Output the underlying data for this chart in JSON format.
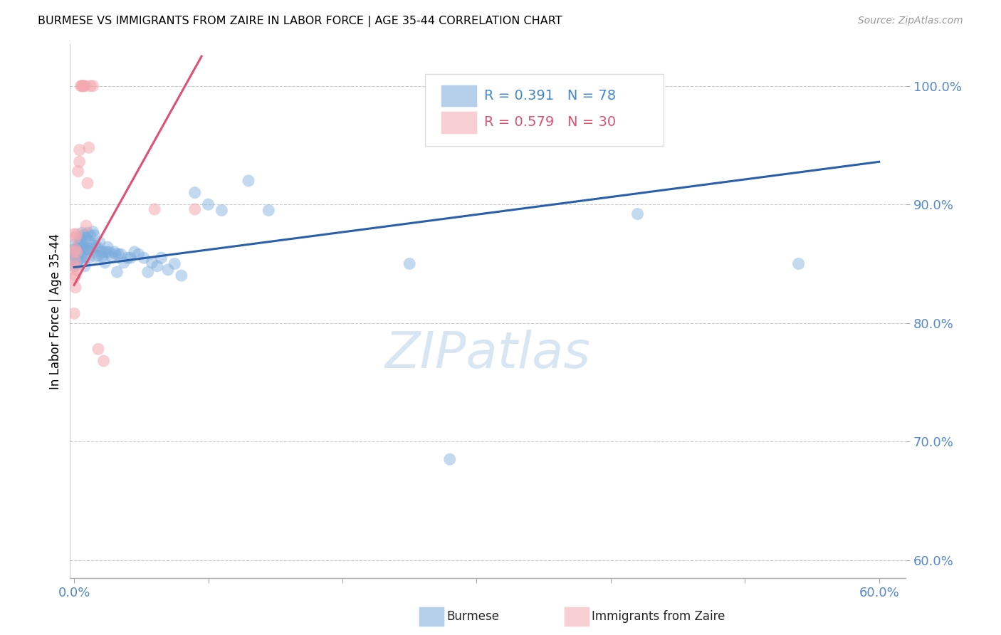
{
  "title": "BURMESE VS IMMIGRANTS FROM ZAIRE IN LABOR FORCE | AGE 35-44 CORRELATION CHART",
  "source": "Source: ZipAtlas.com",
  "ylabel": "In Labor Force | Age 35-44",
  "y_ticks": [
    0.6,
    0.7,
    0.8,
    0.9,
    1.0
  ],
  "y_tick_labels": [
    "60.0%",
    "70.0%",
    "80.0%",
    "90.0%",
    "100.0%"
  ],
  "x_min": -0.003,
  "x_max": 0.62,
  "y_min": 0.585,
  "y_max": 1.035,
  "blue_R": 0.391,
  "blue_N": 78,
  "pink_R": 0.579,
  "pink_N": 30,
  "blue_color": "#7aabdc",
  "pink_color": "#f4a8b0",
  "blue_line_color": "#2a5fac",
  "pink_line_color": "#e05070",
  "legend_label_blue": "Burmese",
  "legend_label_pink": "Immigrants from Zaire",
  "watermark": "ZIPatlas",
  "blue_x": [
    0.0,
    0.0,
    0.0,
    0.0,
    0.0,
    0.001,
    0.001,
    0.002,
    0.002,
    0.003,
    0.003,
    0.003,
    0.004,
    0.004,
    0.004,
    0.005,
    0.005,
    0.005,
    0.006,
    0.006,
    0.006,
    0.007,
    0.007,
    0.008,
    0.008,
    0.008,
    0.009,
    0.009,
    0.01,
    0.01,
    0.011,
    0.011,
    0.012,
    0.012,
    0.013,
    0.014,
    0.014,
    0.015,
    0.016,
    0.016,
    0.017,
    0.018,
    0.019,
    0.02,
    0.021,
    0.022,
    0.023,
    0.024,
    0.025,
    0.026,
    0.028,
    0.03,
    0.031,
    0.032,
    0.033,
    0.035,
    0.037,
    0.04,
    0.042,
    0.045,
    0.048,
    0.052,
    0.055,
    0.058,
    0.062,
    0.065,
    0.07,
    0.075,
    0.08,
    0.09,
    0.1,
    0.11,
    0.13,
    0.145,
    0.25,
    0.42,
    0.28,
    0.54
  ],
  "blue_y": [
    0.853,
    0.857,
    0.862,
    0.866,
    0.848,
    0.854,
    0.859,
    0.863,
    0.849,
    0.853,
    0.857,
    0.861,
    0.872,
    0.866,
    0.86,
    0.87,
    0.863,
    0.855,
    0.876,
    0.866,
    0.858,
    0.874,
    0.864,
    0.862,
    0.855,
    0.848,
    0.872,
    0.862,
    0.876,
    0.863,
    0.869,
    0.855,
    0.874,
    0.863,
    0.867,
    0.877,
    0.86,
    0.874,
    0.865,
    0.856,
    0.864,
    0.857,
    0.868,
    0.86,
    0.856,
    0.86,
    0.851,
    0.86,
    0.864,
    0.86,
    0.856,
    0.86,
    0.858,
    0.843,
    0.858,
    0.858,
    0.851,
    0.855,
    0.855,
    0.86,
    0.858,
    0.855,
    0.843,
    0.851,
    0.848,
    0.855,
    0.845,
    0.85,
    0.84,
    0.91,
    0.9,
    0.895,
    0.92,
    0.895,
    0.85,
    0.892,
    0.685,
    0.85
  ],
  "pink_x": [
    0.0,
    0.0,
    0.0,
    0.0,
    0.0,
    0.001,
    0.001,
    0.001,
    0.001,
    0.001,
    0.002,
    0.002,
    0.002,
    0.003,
    0.004,
    0.004,
    0.005,
    0.006,
    0.006,
    0.007,
    0.008,
    0.009,
    0.01,
    0.011,
    0.012,
    0.014,
    0.018,
    0.022,
    0.06,
    0.09
  ],
  "pink_y": [
    0.875,
    0.86,
    0.848,
    0.838,
    0.808,
    0.872,
    0.862,
    0.852,
    0.84,
    0.83,
    0.875,
    0.86,
    0.845,
    0.928,
    0.946,
    0.936,
    1.0,
    1.0,
    1.0,
    1.0,
    1.0,
    0.882,
    0.918,
    0.948,
    1.0,
    1.0,
    0.778,
    0.768,
    0.896,
    0.896
  ],
  "blue_line_x": [
    0.0,
    0.6
  ],
  "blue_line_y": [
    0.847,
    0.936
  ],
  "pink_line_x": [
    0.0,
    0.095
  ],
  "pink_line_y": [
    0.832,
    1.025
  ],
  "x_tick_positions": [
    0.0,
    0.1,
    0.2,
    0.3,
    0.4,
    0.5,
    0.6
  ],
  "x_tick_labels": [
    "0.0%",
    "",
    "",
    "",
    "",
    "",
    "60.0%"
  ]
}
